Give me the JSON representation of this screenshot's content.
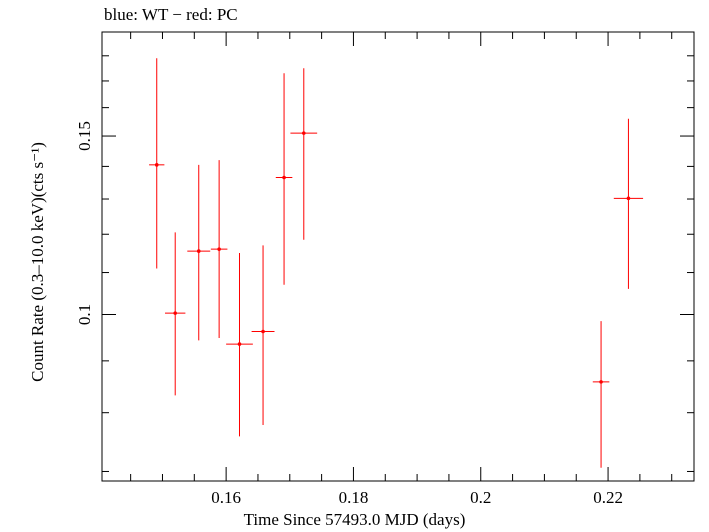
{
  "chart_data": {
    "type": "scatter",
    "title": "blue: WT − red: PC",
    "xlabel": "Time Since 57493.0 MJD (days)",
    "ylabel": "Count Rate (0.3–10.0 keV)(cts s⁻¹)",
    "y_scale": "log",
    "xlim": [
      0.1405,
      0.2335
    ],
    "ylim": [
      0.0685,
      0.19
    ],
    "x_ticks": [
      0.16,
      0.18,
      0.2,
      0.22
    ],
    "x_tick_labels": [
      "0.16",
      "0.18",
      "0.2",
      "0.22"
    ],
    "y_ticks": [
      0.1,
      0.15
    ],
    "y_tick_labels": [
      "0.1",
      "0.15"
    ],
    "grid": false,
    "colors": {
      "pc": "#ff0000"
    },
    "series": [
      {
        "points": [
          {
            "x": 0.1491,
            "xerr": 0.0012,
            "y": 0.1405,
            "ylo": 0.111,
            "yhi": 0.179
          },
          {
            "x": 0.152,
            "xerr": 0.0016,
            "y": 0.1003,
            "ylo": 0.0832,
            "yhi": 0.1205
          },
          {
            "x": 0.1557,
            "xerr": 0.0018,
            "y": 0.1155,
            "ylo": 0.0943,
            "yhi": 0.1405
          },
          {
            "x": 0.1589,
            "xerr": 0.0013,
            "y": 0.116,
            "ylo": 0.0948,
            "yhi": 0.142
          },
          {
            "x": 0.1621,
            "xerr": 0.0021,
            "y": 0.0935,
            "ylo": 0.0758,
            "yhi": 0.115
          },
          {
            "x": 0.1658,
            "xerr": 0.0018,
            "y": 0.0962,
            "ylo": 0.0778,
            "yhi": 0.117
          },
          {
            "x": 0.1691,
            "xerr": 0.0013,
            "y": 0.1365,
            "ylo": 0.107,
            "yhi": 0.173
          },
          {
            "x": 0.1722,
            "xerr": 0.0021,
            "y": 0.151,
            "ylo": 0.1185,
            "yhi": 0.175
          },
          {
            "x": 0.2189,
            "xerr": 0.0013,
            "y": 0.0858,
            "ylo": 0.0706,
            "yhi": 0.0985
          },
          {
            "x": 0.2232,
            "xerr": 0.0023,
            "y": 0.1302,
            "ylo": 0.106,
            "yhi": 0.156
          }
        ]
      }
    ]
  }
}
